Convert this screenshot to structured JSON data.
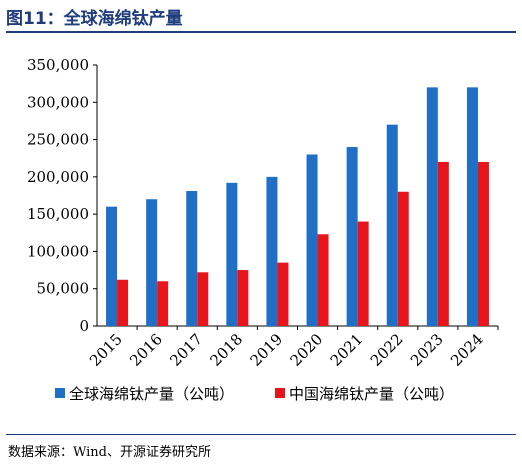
{
  "figure": {
    "title": "图11：全球海绵钛产量",
    "source": "数据来源：Wind、开源证券研究所"
  },
  "colors": {
    "global": "#1f6fc6",
    "china": "#e8141b",
    "title": "#1f3c7c"
  },
  "chart_data": {
    "type": "bar",
    "categories": [
      "2015",
      "2016",
      "2017",
      "2018",
      "2019",
      "2020",
      "2021",
      "2022",
      "2023",
      "2024"
    ],
    "series": [
      {
        "name": "全球海绵钛产量（公吨）",
        "values": [
          160000,
          170000,
          181000,
          192000,
          200000,
          230000,
          240000,
          270000,
          320000,
          320000
        ]
      },
      {
        "name": "中国海绵钛产量（公吨）",
        "values": [
          62000,
          60000,
          72000,
          75000,
          85000,
          123000,
          140000,
          180000,
          220000,
          220000
        ]
      }
    ],
    "ylim": [
      0,
      350000
    ],
    "yticks": [
      0,
      50000,
      100000,
      150000,
      200000,
      250000,
      300000,
      350000
    ],
    "ytick_labels": [
      "0",
      "50,000",
      "100,000",
      "150,000",
      "200,000",
      "250,000",
      "300,000",
      "350,000"
    ],
    "legend_position": "bottom",
    "grid": false
  }
}
